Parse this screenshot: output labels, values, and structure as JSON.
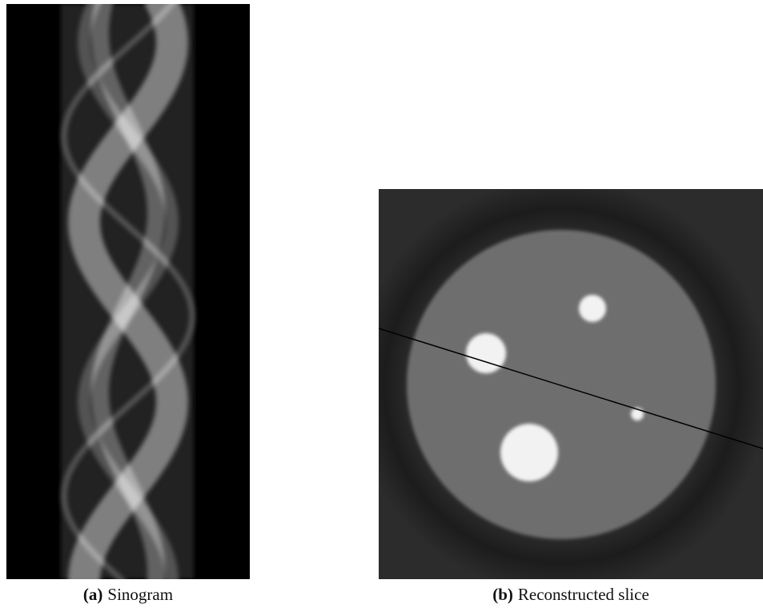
{
  "figures": [
    {
      "label": "(a)",
      "caption": "Sinogram"
    },
    {
      "label": "(b)",
      "caption": "Reconstructed slice"
    }
  ]
}
